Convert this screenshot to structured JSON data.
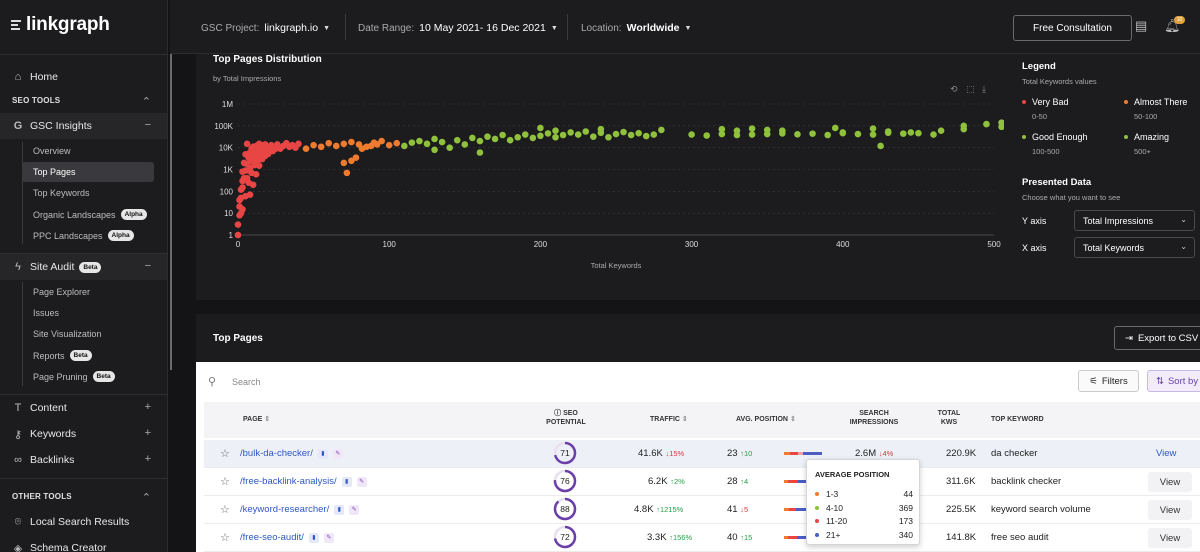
{
  "sidebar": {
    "logo": "linkgraph",
    "home": "Home",
    "seo_tools": "SEO TOOLS",
    "gsc_insights": "GSC Insights",
    "gsc_items": [
      {
        "label": "Overview",
        "badge": ""
      },
      {
        "label": "Top Pages",
        "badge": ""
      },
      {
        "label": "Top Keywords",
        "badge": ""
      },
      {
        "label": "Organic Landscapes",
        "badge": "Alpha"
      },
      {
        "label": "PPC Landscapes",
        "badge": "Alpha"
      }
    ],
    "site_audit": "Site Audit",
    "site_audit_badge": "Beta",
    "audit_items": [
      {
        "label": "Page Explorer",
        "badge": ""
      },
      {
        "label": "Issues",
        "badge": ""
      },
      {
        "label": "Site Visualization",
        "badge": ""
      },
      {
        "label": "Reports",
        "badge": "Beta"
      },
      {
        "label": "Page Pruning",
        "badge": "Beta"
      }
    ],
    "content": "Content",
    "keywords": "Keywords",
    "backlinks": "Backlinks",
    "other_tools": "OTHER TOOLS",
    "local_search": "Local Search Results",
    "schema_creator": "Schema Creator"
  },
  "header": {
    "gsc_label": "GSC Project:",
    "gsc_value": "linkgraph.io",
    "date_label": "Date Range:",
    "date_value": "10 May 2021- 16 Dec 2021",
    "location_label": "Location:",
    "location_value": "Worldwide",
    "free_consultation": "Free Consultation",
    "notif_count": "10"
  },
  "chart_panel": {
    "title": "Top Pages Distribution",
    "subtitle": "by Total Impressions"
  },
  "chart_data": {
    "type": "scatter",
    "title": "Top Pages Distribution",
    "subtitle": "by Total Impressions",
    "xlabel": "Total Keywords",
    "ylabel": "Total Impressions",
    "xlim": [
      0,
      500
    ],
    "ylim": [
      1,
      1000000
    ],
    "yscale": "log",
    "x_ticks": [
      "0",
      "100",
      "200",
      "300",
      "400",
      "500"
    ],
    "y_ticks": [
      "1",
      "10",
      "100",
      "1K",
      "10K",
      "100K",
      "1M"
    ],
    "series": [
      {
        "name": "Very Bad",
        "color": "#e84545",
        "points": [
          [
            0,
            1
          ],
          [
            0,
            3
          ],
          [
            1,
            8
          ],
          [
            1,
            20
          ],
          [
            2,
            50
          ],
          [
            2,
            120
          ],
          [
            3,
            300
          ],
          [
            3,
            800
          ],
          [
            4,
            2000
          ],
          [
            5,
            5000
          ],
          [
            6,
            15000
          ],
          [
            2,
            10
          ],
          [
            1,
            40
          ],
          [
            3,
            150
          ],
          [
            4,
            400
          ],
          [
            5,
            900
          ],
          [
            6,
            1800
          ],
          [
            7,
            3500
          ],
          [
            8,
            6000
          ],
          [
            9,
            9000
          ],
          [
            10,
            11000
          ],
          [
            11,
            7000
          ],
          [
            12,
            12000
          ],
          [
            13,
            9000
          ],
          [
            14,
            15000
          ],
          [
            15,
            10000
          ],
          [
            16,
            13000
          ],
          [
            17,
            8000
          ],
          [
            18,
            14000
          ],
          [
            19,
            11000
          ],
          [
            20,
            9500
          ],
          [
            22,
            13000
          ],
          [
            24,
            10000
          ],
          [
            26,
            14000
          ],
          [
            28,
            9000
          ],
          [
            30,
            12000
          ],
          [
            32,
            16000
          ],
          [
            34,
            11000
          ],
          [
            36,
            13000
          ],
          [
            38,
            10000
          ],
          [
            40,
            15000
          ],
          [
            6,
            400
          ],
          [
            7,
            900
          ],
          [
            8,
            1200
          ],
          [
            9,
            2500
          ],
          [
            10,
            4000
          ],
          [
            11,
            2800
          ],
          [
            12,
            5000
          ],
          [
            13,
            3500
          ],
          [
            14,
            6000
          ],
          [
            15,
            4500
          ],
          [
            8,
            70
          ],
          [
            10,
            200
          ],
          [
            12,
            600
          ],
          [
            14,
            1500
          ],
          [
            16,
            3000
          ],
          [
            18,
            4200
          ],
          [
            20,
            5200
          ],
          [
            3,
            15
          ],
          [
            5,
            60
          ],
          [
            7,
            250
          ],
          [
            9,
            700
          ],
          [
            11,
            1600
          ],
          [
            13,
            2600
          ],
          [
            15,
            7500
          ],
          [
            17,
            5500
          ],
          [
            19,
            6500
          ],
          [
            21,
            8000
          ],
          [
            23,
            7000
          ],
          [
            25,
            9000
          ]
        ]
      },
      {
        "name": "Almost There",
        "color": "#f07a2e",
        "points": [
          [
            45,
            9000
          ],
          [
            50,
            13000
          ],
          [
            55,
            11000
          ],
          [
            60,
            16000
          ],
          [
            65,
            12000
          ],
          [
            70,
            15000
          ],
          [
            75,
            18000
          ],
          [
            80,
            14000
          ],
          [
            85,
            11000
          ],
          [
            90,
            17000
          ],
          [
            95,
            20000
          ],
          [
            100,
            13000
          ],
          [
            105,
            16000
          ],
          [
            70,
            2000
          ],
          [
            75,
            2500
          ],
          [
            72,
            700
          ],
          [
            78,
            3500
          ],
          [
            82,
            9000
          ],
          [
            88,
            12000
          ],
          [
            92,
            14000
          ]
        ]
      },
      {
        "name": "Good Enough",
        "color": "#8fc13d",
        "points": [
          [
            110,
            12000
          ],
          [
            115,
            17000
          ],
          [
            120,
            20000
          ],
          [
            125,
            15000
          ],
          [
            130,
            25000
          ],
          [
            135,
            18000
          ],
          [
            140,
            10000
          ],
          [
            145,
            22000
          ],
          [
            150,
            14000
          ],
          [
            155,
            28000
          ],
          [
            160,
            20000
          ],
          [
            165,
            32000
          ],
          [
            170,
            25000
          ],
          [
            175,
            38000
          ],
          [
            180,
            22000
          ],
          [
            185,
            30000
          ],
          [
            190,
            40000
          ],
          [
            195,
            28000
          ],
          [
            200,
            35000
          ],
          [
            205,
            45000
          ],
          [
            210,
            30000
          ],
          [
            215,
            38000
          ],
          [
            220,
            50000
          ],
          [
            225,
            40000
          ],
          [
            230,
            55000
          ],
          [
            235,
            32000
          ],
          [
            240,
            48000
          ],
          [
            245,
            30000
          ],
          [
            250,
            42000
          ],
          [
            255,
            52000
          ],
          [
            260,
            38000
          ],
          [
            265,
            46000
          ],
          [
            270,
            34000
          ],
          [
            275,
            40000
          ],
          [
            300,
            40000
          ],
          [
            310,
            36000
          ],
          [
            320,
            42000
          ],
          [
            330,
            38000
          ],
          [
            340,
            40000
          ],
          [
            350,
            42000
          ],
          [
            360,
            45000
          ],
          [
            370,
            41000
          ],
          [
            380,
            44000
          ],
          [
            390,
            38000
          ],
          [
            400,
            46000
          ],
          [
            410,
            42000
          ],
          [
            420,
            40000
          ],
          [
            430,
            48000
          ],
          [
            440,
            44000
          ],
          [
            450,
            46000
          ],
          [
            460,
            40000
          ],
          [
            130,
            8000
          ],
          [
            160,
            6000
          ]
        ]
      },
      {
        "name": "Amazing",
        "color": "#8fc13d",
        "points": [
          [
            200,
            80000
          ],
          [
            210,
            60000
          ],
          [
            240,
            70000
          ],
          [
            280,
            65000
          ],
          [
            320,
            70000
          ],
          [
            330,
            60000
          ],
          [
            340,
            75000
          ],
          [
            350,
            65000
          ],
          [
            360,
            60000
          ],
          [
            395,
            80000
          ],
          [
            400,
            50000
          ],
          [
            420,
            75000
          ],
          [
            425,
            12000
          ],
          [
            430,
            55000
          ],
          [
            445,
            50000
          ],
          [
            465,
            60000
          ],
          [
            480,
            70000
          ],
          [
            505,
            90000
          ],
          [
            515,
            75000
          ],
          [
            480,
            100000
          ],
          [
            495,
            120000
          ],
          [
            505,
            140000
          ],
          [
            510,
            80000
          ]
        ]
      }
    ]
  },
  "legend": {
    "title": "Legend",
    "subtitle": "Total Keywords values",
    "items": [
      {
        "label": "Very Bad",
        "range": "0-50",
        "color": "#e84545"
      },
      {
        "label": "Almost There",
        "range": "50-100",
        "color": "#f07a2e"
      },
      {
        "label": "Good Enough",
        "range": "100-500",
        "color": "#8fc13d"
      },
      {
        "label": "Amazing",
        "range": "500+",
        "color": "#8fc13d"
      }
    ],
    "presented_title": "Presented Data",
    "presented_sub": "Choose what you want to see",
    "y_axis_label": "Y axis",
    "y_axis_value": "Total Impressions",
    "x_axis_label": "X axis",
    "x_axis_value": "Total Keywords"
  },
  "top_pages": {
    "title": "Top Pages",
    "export": "Export to CSV",
    "search_placeholder": "Search",
    "filters": "Filters",
    "sort_by": "Sort by",
    "columns": {
      "page": "PAGE",
      "seo_potential": "SEO POTENTIAL",
      "traffic": "TRAFFIC",
      "avg_position": "AVG. POSITION",
      "search_impressions": "SEARCH IMPRESSIONS",
      "total_kws": "TOTAL KWS",
      "top_keyword": "TOP KEYWORD"
    },
    "rows": [
      {
        "page": "/bulk-da-checker/",
        "seo": "71",
        "seo_pct": 71,
        "traffic": "41.6K",
        "traffic_trend": "15%",
        "traffic_dir": "down",
        "pos": "23",
        "pos_trend": "10",
        "pos_dir": "up",
        "impressions": "2.6M",
        "imp_trend": "4%",
        "imp_dir": "down",
        "kws": "220.9K",
        "keyword": "da checker",
        "action": "View"
      },
      {
        "page": "/free-backlink-analysis/",
        "seo": "76",
        "seo_pct": 76,
        "traffic": "6.2K",
        "traffic_trend": "2%",
        "traffic_dir": "up",
        "pos": "28",
        "pos_trend": "4",
        "pos_dir": "up",
        "impressions": "",
        "imp_trend": "",
        "imp_dir": "up",
        "kws": "311.6K",
        "keyword": "backlink checker",
        "action": "View"
      },
      {
        "page": "/keyword-researcher/",
        "seo": "88",
        "seo_pct": 88,
        "traffic": "4.8K",
        "traffic_trend": "1215%",
        "traffic_dir": "up",
        "pos": "41",
        "pos_trend": "5",
        "pos_dir": "down",
        "impressions": "",
        "imp_trend": "",
        "imp_dir": "up",
        "kws": "225.5K",
        "keyword": "keyword search volume",
        "action": "View"
      },
      {
        "page": "/free-seo-audit/",
        "seo": "72",
        "seo_pct": 72,
        "traffic": "3.3K",
        "traffic_trend": "156%",
        "traffic_dir": "up",
        "pos": "40",
        "pos_trend": "15",
        "pos_dir": "up",
        "impressions": "",
        "imp_trend": "",
        "imp_dir": "up",
        "kws": "141.8K",
        "keyword": "free seo audit",
        "action": "View"
      }
    ]
  },
  "tooltip": {
    "title": "AVERAGE POSITION",
    "items": [
      {
        "label": "1-3",
        "value": "44",
        "color": "#f07a2e"
      },
      {
        "label": "4-10",
        "value": "369",
        "color": "#8fc13d"
      },
      {
        "label": "11-20",
        "value": "173",
        "color": "#e84545"
      },
      {
        "label": "21+",
        "value": "340",
        "color": "#4a5ec4"
      }
    ]
  }
}
